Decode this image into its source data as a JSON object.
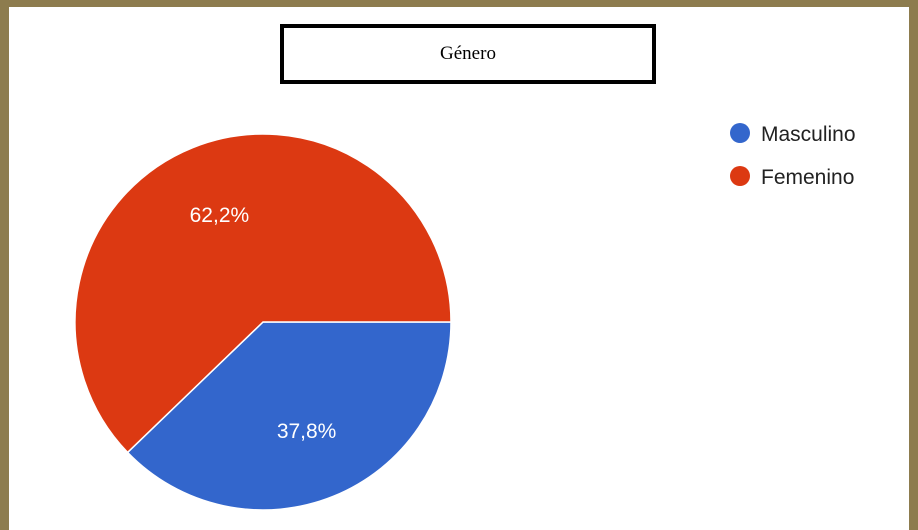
{
  "chart_data": {
    "type": "pie",
    "title": "Género",
    "slices": [
      {
        "label": "Masculino",
        "value": 37.8,
        "value_label": "37,8%",
        "color": "#3366cc"
      },
      {
        "label": "Femenino",
        "value": 62.2,
        "value_label": "62,2%",
        "color": "#dc3912"
      }
    ],
    "legend_position": "top-right"
  },
  "colors": {
    "frame": "#8d7c4e",
    "slice_border": "#ffffff"
  }
}
